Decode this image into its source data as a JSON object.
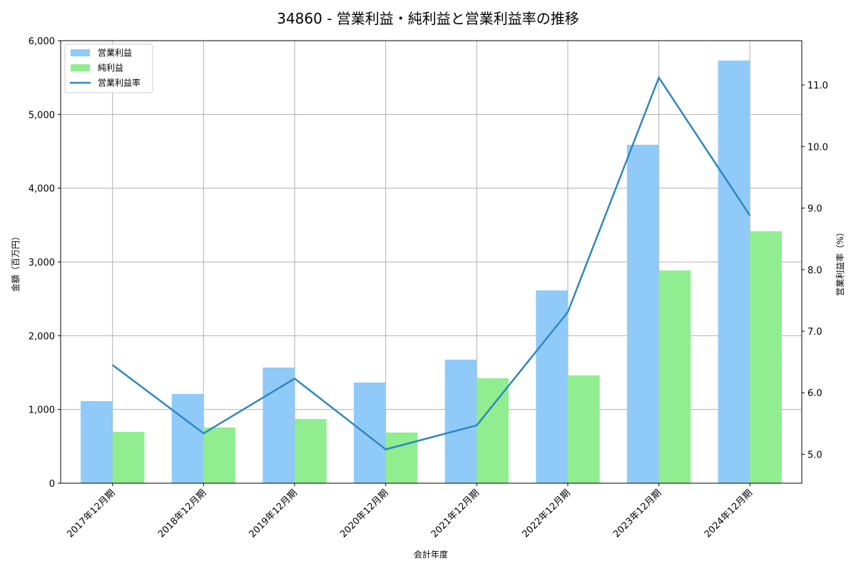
{
  "chart_data": {
    "type": "bar",
    "title": "34860 - 営業利益・純利益と営業利益率の推移",
    "xlabel": "会計年度",
    "ylabel": "金額（百万円）",
    "y2label": "営業利益率（%）",
    "categories": [
      "2017年12月期",
      "2018年12月期",
      "2019年12月期",
      "2020年12月期",
      "2021年12月期",
      "2022年12月期",
      "2023年12月期",
      "2024年12月期"
    ],
    "series": [
      {
        "name": "営業利益",
        "type": "bar",
        "axis": "left",
        "color": "#90caf9",
        "values": [
          1113,
          1210,
          1568,
          1365,
          1675,
          2614,
          4589,
          5731
        ]
      },
      {
        "name": "純利益",
        "type": "bar",
        "axis": "left",
        "color": "#90ee90",
        "values": [
          697,
          755,
          871,
          687,
          1423,
          1462,
          2885,
          3417
        ]
      },
      {
        "name": "営業利益率",
        "type": "line",
        "axis": "right",
        "color": "#2e86c1",
        "values": [
          6.45,
          5.34,
          6.23,
          5.08,
          5.47,
          7.31,
          11.12,
          8.88
        ]
      }
    ],
    "ylim": [
      0,
      6000
    ],
    "yticks": [
      0,
      1000,
      2000,
      3000,
      4000,
      5000,
      6000
    ],
    "ytick_labels": [
      "0",
      "1,000",
      "2,000",
      "3,000",
      "4,000",
      "5,000",
      "6,000"
    ],
    "y2lim": [
      4.53,
      11.72
    ],
    "y2ticks": [
      5.0,
      6.0,
      7.0,
      8.0,
      9.0,
      10.0,
      11.0
    ],
    "y2tick_labels": [
      "5.0",
      "6.0",
      "7.0",
      "8.0",
      "9.0",
      "10.0",
      "11.0"
    ],
    "grid": true,
    "legend_position": "upper left"
  }
}
